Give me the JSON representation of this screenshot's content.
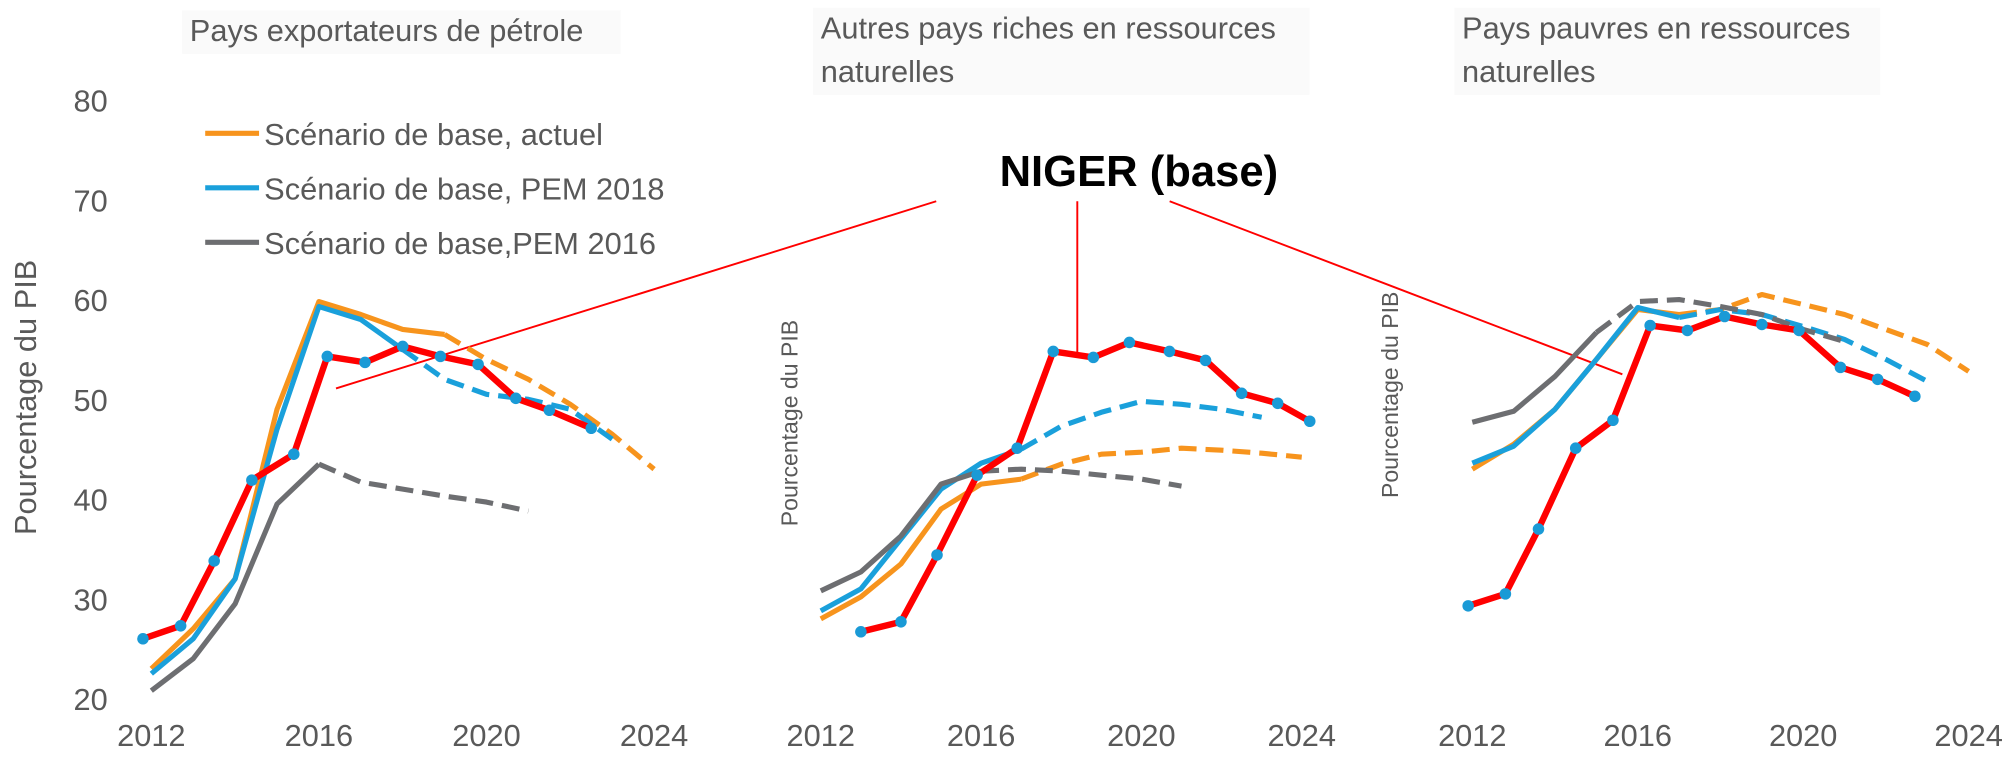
{
  "annotation": "NIGER (base)",
  "chart_data": [
    {
      "type": "line",
      "title": "Pays exportateurs  de pétrole",
      "y_label": "Pourcentage du PIB",
      "legend": "upper left",
      "xlim": [
        2012,
        2024
      ],
      "xticks": [
        2012,
        2016,
        2020,
        2024
      ],
      "ylim": [
        20,
        80
      ],
      "yticks": [
        20,
        30,
        40,
        50,
        60,
        70,
        80
      ],
      "series": [
        {
          "name": "Scénario de base, actuel",
          "color": "#f7941d",
          "dash_from": 2019,
          "x": [
            2012,
            2013,
            2014,
            2015,
            2016,
            2017,
            2018,
            2019,
            2020,
            2021,
            2022,
            2023,
            2024
          ],
          "values": [
            23,
            27,
            32,
            49,
            59.8,
            58.5,
            57,
            56.5,
            54,
            52,
            49.5,
            46.5,
            43
          ]
        },
        {
          "name": "Scénario de base, PEM 2018",
          "color": "#1aa0db",
          "dash_from": 2018,
          "x": [
            2012,
            2013,
            2014,
            2015,
            2016,
            2017,
            2018,
            2019,
            2020,
            2021,
            2022,
            2023
          ],
          "values": [
            22.5,
            26,
            32,
            47,
            59.3,
            58,
            55,
            52,
            50.5,
            50,
            49,
            46
          ]
        },
        {
          "name": "Scénario de base,PEM 2016",
          "color": "#6d6e71",
          "dash_from": 2016,
          "x": [
            2012,
            2013,
            2014,
            2015,
            2016,
            2017,
            2018,
            2019,
            2020,
            2021
          ],
          "values": [
            20.8,
            24,
            29.5,
            39.5,
            43.5,
            41.7,
            41,
            40.3,
            39.7,
            38.8
          ]
        },
        {
          "color": "#ff0000",
          "marker_color": "#1a9ad6",
          "x": [
            2011.8,
            2012.7,
            2013.5,
            2014.4,
            2015.4,
            2016.2,
            2017.1,
            2018.0,
            2018.9,
            2019.8,
            2020.7,
            2021.5,
            2022.5
          ],
          "values": [
            26.0,
            27.3,
            33.8,
            41.9,
            44.5,
            54.3,
            53.7,
            55.3,
            54.3,
            53.5,
            50.1,
            48.9,
            47.1
          ]
        }
      ]
    },
    {
      "type": "line",
      "title": "Autres pays riches en ressources naturelles",
      "y_label": "Pourcentage du PIB",
      "xlim": [
        2012,
        2024
      ],
      "xticks": [
        2012,
        2016,
        2020,
        2024
      ],
      "ylim": [
        20,
        80
      ],
      "series": [
        {
          "color": "#f7941d",
          "dash_from": 2017,
          "x": [
            2012,
            2013,
            2014,
            2015,
            2016,
            2017,
            2018,
            2019,
            2020,
            2021,
            2022,
            2023,
            2024
          ],
          "values": [
            28,
            30.2,
            33.5,
            39,
            41.5,
            42,
            43.5,
            44.5,
            44.7,
            45.1,
            44.9,
            44.6,
            44.2
          ]
        },
        {
          "color": "#1aa0db",
          "dash_from": 2017,
          "x": [
            2012,
            2013,
            2014,
            2015,
            2016,
            2017,
            2018,
            2019,
            2020,
            2021,
            2022,
            2023
          ],
          "values": [
            28.8,
            31,
            36,
            41,
            43.6,
            45,
            47.3,
            48.7,
            49.8,
            49.5,
            49,
            48.2
          ]
        },
        {
          "color": "#6d6e71",
          "dash_from": 2016,
          "x": [
            2012,
            2013,
            2014,
            2015,
            2016,
            2017,
            2018,
            2019,
            2020,
            2021
          ],
          "values": [
            30.8,
            32.7,
            36.3,
            41.5,
            42.8,
            43,
            42.8,
            42.4,
            42,
            41.3
          ]
        },
        {
          "color": "#ff0000",
          "marker_color": "#1a9ad6",
          "x": [
            2013.0,
            2014.0,
            2014.9,
            2015.9,
            2016.9,
            2017.8,
            2018.8,
            2019.7,
            2020.7,
            2021.6,
            2022.5,
            2023.4,
            2024.2
          ],
          "values": [
            26.7,
            27.7,
            34.4,
            42.4,
            45.1,
            54.8,
            54.2,
            55.7,
            54.8,
            53.9,
            50.6,
            49.6,
            47.8
          ]
        }
      ]
    },
    {
      "type": "line",
      "title": "Pays pauvres en ressources naturelles",
      "y_label": "Pourcentage du PIB",
      "xlim": [
        2012,
        2024
      ],
      "xticks": [
        2012,
        2016,
        2020,
        2024
      ],
      "ylim": [
        20,
        80
      ],
      "series": [
        {
          "color": "#f7941d",
          "dash_from": 2017,
          "x": [
            2012,
            2013,
            2014,
            2015,
            2016,
            2017,
            2018,
            2019,
            2020,
            2021,
            2022,
            2023,
            2024
          ],
          "values": [
            43,
            45.5,
            49,
            54,
            59,
            58.5,
            59,
            60.5,
            59.5,
            58.5,
            57,
            55.5,
            52.8
          ]
        },
        {
          "color": "#1aa0db",
          "dash_from": 2017,
          "x": [
            2012,
            2013,
            2014,
            2015,
            2016,
            2017,
            2018,
            2019,
            2020,
            2021,
            2022,
            2023
          ],
          "values": [
            43.6,
            45.3,
            49,
            54,
            59.2,
            58.2,
            59,
            58.5,
            57.3,
            56,
            54,
            51.8
          ]
        },
        {
          "color": "#6d6e71",
          "dash_from": 2015,
          "x": [
            2012,
            2013,
            2014,
            2015,
            2016,
            2017,
            2018,
            2019,
            2020,
            2021
          ],
          "values": [
            47.7,
            48.8,
            52.3,
            56.7,
            59.8,
            60,
            59.3,
            58.5,
            57,
            55.8
          ]
        },
        {
          "color": "#ff0000",
          "marker_color": "#1a9ad6",
          "x": [
            2011.9,
            2012.8,
            2013.6,
            2014.5,
            2015.4,
            2016.3,
            2017.2,
            2018.1,
            2019.0,
            2019.9,
            2020.9,
            2021.8,
            2022.7
          ],
          "values": [
            29.3,
            30.5,
            37.0,
            45.1,
            47.9,
            57.4,
            56.9,
            58.3,
            57.5,
            56.9,
            53.2,
            52.0,
            50.3
          ]
        }
      ]
    }
  ]
}
